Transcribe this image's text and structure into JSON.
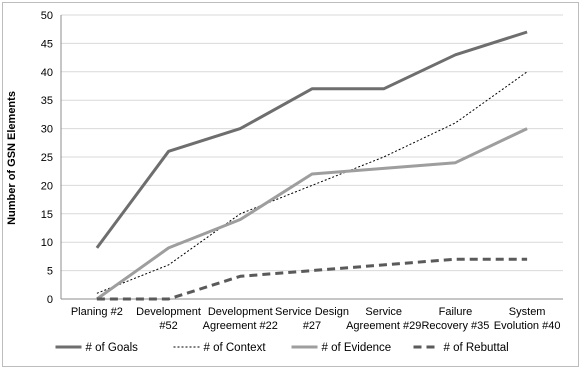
{
  "chart_data": {
    "type": "line",
    "title": "",
    "xlabel": "",
    "ylabel": "Number of GSN Elements",
    "ylim": [
      0,
      50
    ],
    "yticks": [
      0,
      5,
      10,
      15,
      20,
      25,
      30,
      35,
      40,
      45,
      50
    ],
    "grid": "horizontal",
    "legend_position": "bottom",
    "categories": [
      [
        "Planing #2"
      ],
      [
        "Development",
        "#52"
      ],
      [
        "Development",
        "Agreement #22"
      ],
      [
        "Service Design",
        "#27"
      ],
      [
        "Service",
        "Agreement #29"
      ],
      [
        "Failure",
        "Recovery #35"
      ],
      [
        "System",
        "Evolution #40"
      ]
    ],
    "series": [
      {
        "name": "# of Goals",
        "values": [
          9,
          26,
          30,
          37,
          37,
          43,
          47
        ],
        "color": "#6e6e6e",
        "style": "solid-thick"
      },
      {
        "name": "# of Context",
        "values": [
          1,
          6,
          15,
          20,
          25,
          31,
          40
        ],
        "color": "#000000",
        "style": "dotted-thin"
      },
      {
        "name": "# of Evidence",
        "values": [
          0,
          9,
          14,
          22,
          23,
          24,
          30
        ],
        "color": "#9e9e9e",
        "style": "solid-thick"
      },
      {
        "name": "# of Rebuttal",
        "values": [
          0,
          0,
          4,
          5,
          6,
          7,
          7
        ],
        "color": "#5a5a5a",
        "style": "dashed-thick"
      }
    ]
  }
}
